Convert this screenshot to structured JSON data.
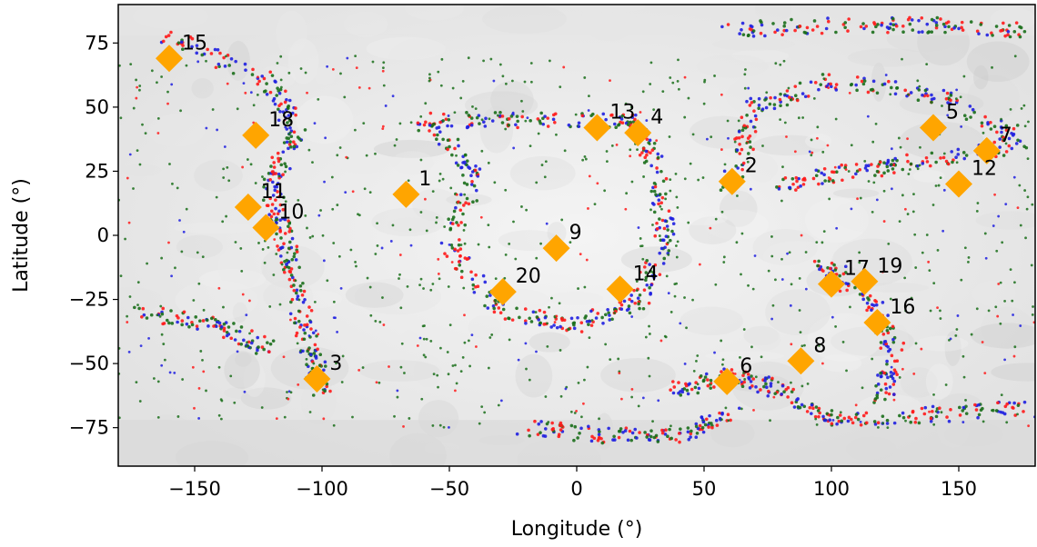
{
  "chart_data": {
    "type": "scatter",
    "title": "",
    "xlabel": "Longitude (°)",
    "ylabel": "Latitude (°)",
    "xlim": [
      -180,
      180
    ],
    "ylim": [
      -90,
      90
    ],
    "xticks": [
      -150,
      -100,
      -50,
      0,
      50,
      100,
      150
    ],
    "yticks": [
      -75,
      -50,
      -25,
      0,
      25,
      50,
      75
    ],
    "grid": false,
    "background": "grayscale planetary basemap",
    "colors": {
      "marker": "#FFA500",
      "series_red": "#ff1a1a",
      "series_blue": "#1f1fe0",
      "series_green": "#1a6e1a"
    },
    "sites": [
      {
        "label": "1",
        "lon": -67,
        "lat": 16
      },
      {
        "label": "2",
        "lon": 61,
        "lat": 21
      },
      {
        "label": "3",
        "lon": -102,
        "lat": -56
      },
      {
        "label": "4",
        "lon": 24,
        "lat": 40
      },
      {
        "label": "5",
        "lon": 140,
        "lat": 42
      },
      {
        "label": "6",
        "lon": 59,
        "lat": -57
      },
      {
        "label": "7",
        "lon": 161,
        "lat": 33
      },
      {
        "label": "8",
        "lon": 88,
        "lat": -49
      },
      {
        "label": "9",
        "lon": -8,
        "lat": -5
      },
      {
        "label": "10",
        "lon": -122,
        "lat": 3
      },
      {
        "label": "11",
        "lon": -129,
        "lat": 11
      },
      {
        "label": "12",
        "lon": 150,
        "lat": 20
      },
      {
        "label": "13",
        "lon": 8,
        "lat": 42
      },
      {
        "label": "14",
        "lon": 17,
        "lat": -21
      },
      {
        "label": "15",
        "lon": -160,
        "lat": 69
      },
      {
        "label": "16",
        "lon": 118,
        "lat": -34
      },
      {
        "label": "17",
        "lon": 100,
        "lat": -19
      },
      {
        "label": "18",
        "lon": -126,
        "lat": 39
      },
      {
        "label": "19",
        "lon": 113,
        "lat": -18
      },
      {
        "label": "20",
        "lon": -29,
        "lat": -22
      }
    ]
  }
}
